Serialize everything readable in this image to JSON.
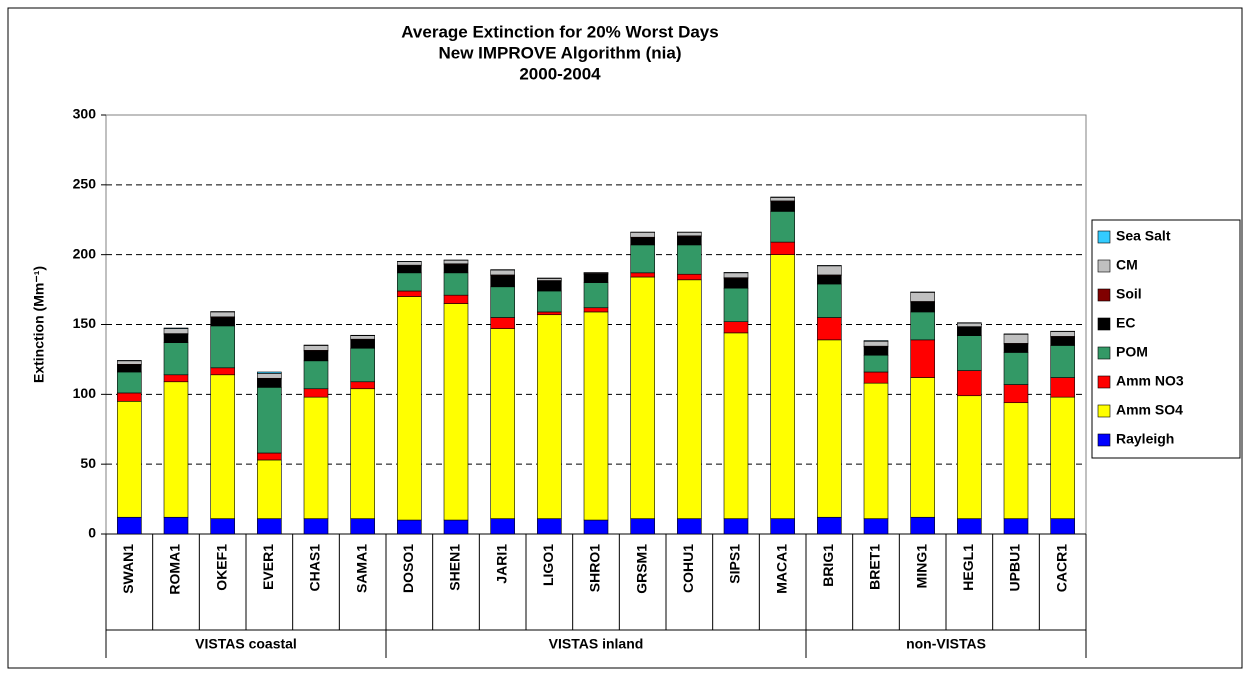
{
  "chart_data": {
    "type": "stacked_bar",
    "title": [
      "Average Extinction for 20% Worst Days",
      "New IMPROVE Algorithm (nia)",
      "2000-2004"
    ],
    "y_label": "Extinction (Mm⁻¹)",
    "groups": [
      {
        "label": "VISTAS coastal",
        "categories": [
          "SWAN1",
          "ROMA1",
          "OKEF1",
          "EVER1",
          "CHAS1",
          "SAMA1"
        ]
      },
      {
        "label": "VISTAS inland",
        "categories": [
          "DOSO1",
          "SHEN1",
          "JARI1",
          "LIGO1",
          "SHRO1",
          "GRSM1",
          "COHU1",
          "SIPS1",
          "MACA1"
        ]
      },
      {
        "label": "non-VISTAS",
        "categories": [
          "BRIG1",
          "BRET1",
          "MING1",
          "HEGL1",
          "UPBU1",
          "CACR1"
        ]
      }
    ],
    "series": [
      {
        "name": "Rayleigh",
        "color": "#0000ff",
        "values": [
          12,
          12,
          11,
          11,
          11,
          11,
          10,
          10,
          11,
          11,
          10,
          11,
          11,
          11,
          11,
          12,
          11,
          12,
          11,
          11,
          11
        ]
      },
      {
        "name": "Amm SO4",
        "color": "#ffff00",
        "values": [
          83,
          97,
          103,
          42,
          87,
          93,
          160,
          155,
          136,
          146,
          149,
          173,
          171,
          133,
          189,
          127,
          97,
          100,
          88,
          83,
          87
        ]
      },
      {
        "name": "Amm NO3",
        "color": "#ff0000",
        "values": [
          6,
          5,
          5,
          5,
          6,
          5,
          4,
          6,
          8,
          2,
          3,
          3,
          4,
          8,
          9,
          16,
          8,
          27,
          18,
          13,
          14
        ]
      },
      {
        "name": "POM",
        "color": "#339966",
        "values": [
          15,
          23,
          30,
          47,
          20,
          24,
          13,
          16,
          22,
          15,
          18,
          20,
          21,
          24,
          22,
          24,
          12,
          20,
          25,
          23,
          23
        ]
      },
      {
        "name": "EC",
        "color": "#000000",
        "values": [
          5,
          6,
          6,
          6,
          7,
          6,
          5,
          6,
          8,
          7,
          6,
          5,
          6,
          7,
          7,
          6,
          6,
          7,
          6,
          6,
          6
        ]
      },
      {
        "name": "Soil",
        "color": "#800000",
        "values": [
          0.5,
          0.5,
          0.5,
          0.5,
          0.5,
          0.5,
          0.5,
          0.5,
          0.5,
          0.5,
          0.5,
          0.5,
          0.5,
          0.5,
          0.5,
          0.5,
          0.5,
          0.5,
          0.5,
          0.5,
          0.5
        ]
      },
      {
        "name": "CM",
        "color": "#c0c0c0",
        "values": [
          2.5,
          3.5,
          3.5,
          3.5,
          3.5,
          2.5,
          2.5,
          2.5,
          3.5,
          1.5,
          0.5,
          3.5,
          2.5,
          3.5,
          2.5,
          6.5,
          3.5,
          6.5,
          2.5,
          6.5,
          3.5
        ]
      },
      {
        "name": "Sea Salt",
        "color": "#33ccff",
        "values": [
          0.3,
          0.5,
          0.3,
          1,
          0.3,
          0.3,
          0.2,
          0.2,
          0.3,
          0.3,
          0.2,
          0.2,
          0.2,
          0.3,
          0.3,
          0.3,
          0.5,
          0.3,
          0.3,
          0.3,
          0.2
        ]
      }
    ],
    "ylim": [
      0,
      300
    ],
    "yticks": [
      0,
      50,
      100,
      150,
      200,
      250,
      300
    ],
    "grid": true,
    "legend": "right"
  }
}
